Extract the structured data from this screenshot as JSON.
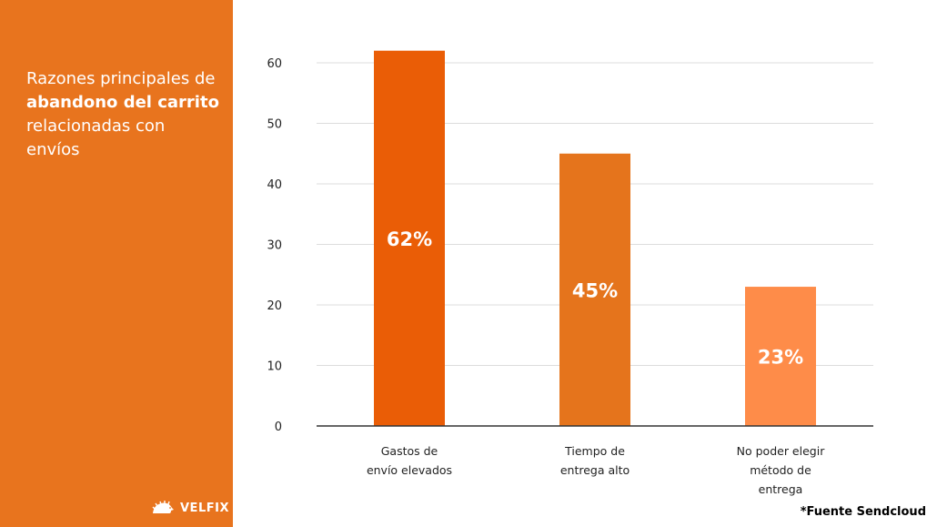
{
  "panel": {
    "title_parts": [
      "Razones principales de ",
      "abandono del carrito",
      " relacionadas con envíos"
    ],
    "background": "#e8741e",
    "logo_text": "VELFIX",
    "logo_icon": "hedgehog-icon"
  },
  "source_note": "*Fuente Sendcloud",
  "chart_data": {
    "type": "bar",
    "categories": [
      [
        "Gastos de",
        "envío elevados"
      ],
      [
        "Tiempo de",
        "entrega alto"
      ],
      [
        "No poder elegir",
        "método de",
        "entrega"
      ]
    ],
    "values": [
      62,
      45,
      23
    ],
    "data_labels": [
      "62%",
      "45%",
      "23%"
    ],
    "colors": [
      "#ea5d06",
      "#e5741c",
      "#fe8c49"
    ],
    "yticks": [
      0,
      10,
      20,
      30,
      40,
      50,
      60
    ],
    "ylim": [
      0,
      60
    ],
    "grid": true,
    "legend": "none"
  }
}
